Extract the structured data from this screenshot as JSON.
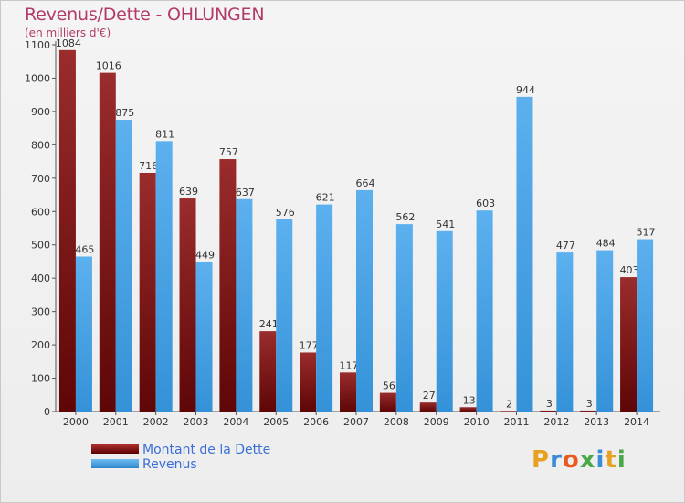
{
  "title": "Revenus/Dette - OHLUNGEN",
  "subtitle": "(en milliers d'€)",
  "logo_letters": [
    "P",
    "r",
    "o",
    "x",
    "i",
    "t",
    "i"
  ],
  "colors": {
    "debt": "#8b1a1a",
    "revenue": "#4ea6e6",
    "title": "#b23a6a",
    "legend_text": "#3a6fd8"
  },
  "legend": [
    {
      "label": "Montant de la Dette",
      "series": "debt"
    },
    {
      "label": "Revenus",
      "series": "revenue"
    }
  ],
  "chart_data": {
    "type": "bar",
    "title": "Revenus/Dette - OHLUNGEN",
    "subtitle": "(en milliers d'€)",
    "categories": [
      "2000",
      "2001",
      "2002",
      "2003",
      "2004",
      "2005",
      "2006",
      "2007",
      "2008",
      "2009",
      "2010",
      "2011",
      "2012",
      "2013",
      "2014"
    ],
    "series": [
      {
        "name": "Montant de la Dette",
        "key": "debt",
        "values": [
          1084,
          1016,
          716,
          639,
          757,
          241,
          177,
          117,
          56,
          27,
          13,
          2,
          3,
          3,
          403
        ]
      },
      {
        "name": "Revenus",
        "key": "revenue",
        "values": [
          465,
          875,
          811,
          449,
          637,
          576,
          621,
          664,
          562,
          541,
          603,
          944,
          477,
          484,
          517
        ]
      }
    ],
    "ylim": [
      0,
      1100
    ],
    "yticks": [
      0,
      100,
      200,
      300,
      400,
      500,
      600,
      700,
      800,
      900,
      1000,
      1100
    ],
    "grid": false,
    "legend_position": "bottom-left"
  }
}
